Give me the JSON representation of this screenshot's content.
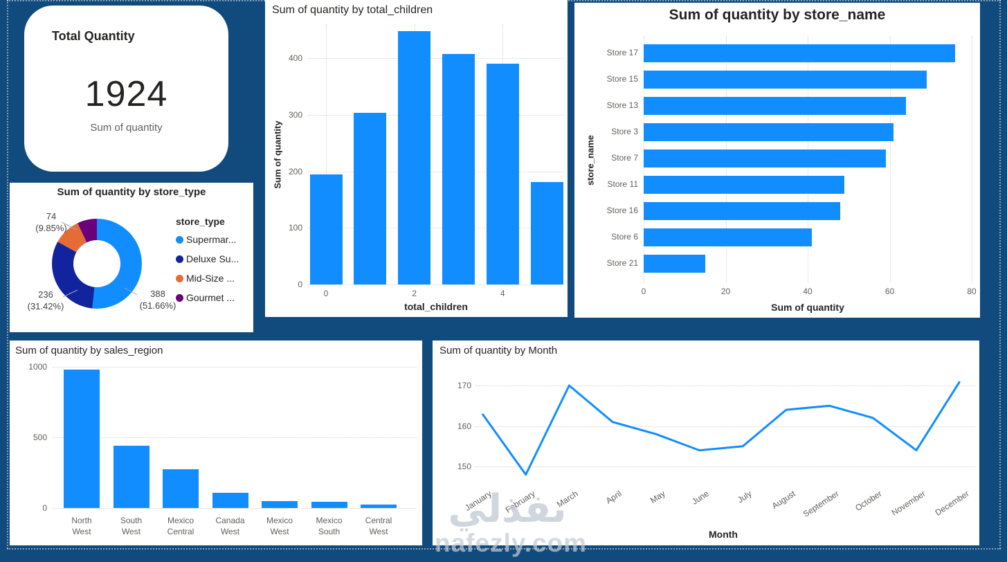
{
  "canvas": {
    "background": "#114A7C"
  },
  "card": {
    "title": "Total Quantity",
    "value": "1924",
    "label": "Sum of quantity"
  },
  "colors": {
    "bar_blue": "#118DFF",
    "navy": "#12239E",
    "orange": "#E66C37",
    "purple": "#6B007B",
    "title_text": "#252423",
    "axis_text": "#605E5C"
  },
  "watermark": {
    "arabic": "نفذلي",
    "site": "nafezly.com"
  },
  "chart_data": [
    {
      "id": "store_type_donut",
      "type": "pie",
      "title": "Sum of quantity by store_type",
      "legend_title": "store_type",
      "legend_position": "right",
      "slices": [
        {
          "label": "Supermar...",
          "value": 388,
          "percent": "51.66%",
          "color": "#118DFF"
        },
        {
          "label": "Deluxe Su...",
          "value": 236,
          "percent": "31.42%",
          "color": "#12239E"
        },
        {
          "label": "Mid-Size ...",
          "value": 74,
          "percent": "9.85%",
          "color": "#E66C37"
        },
        {
          "label": "Gourmet ...",
          "value": 53,
          "percent": "7.07%",
          "color": "#6B007B",
          "label_hidden": true
        }
      ],
      "callouts": [
        {
          "value": "74",
          "percent": "(9.85%)"
        },
        {
          "value": "236",
          "percent": "(31.42%)"
        },
        {
          "value": "388",
          "percent": "(51.66%)"
        }
      ]
    },
    {
      "id": "total_children",
      "type": "bar",
      "title": "Sum of quantity by total_children",
      "xlabel": "total_children",
      "ylabel": "Sum of quantity",
      "categories": [
        "0",
        "1",
        "2",
        "3",
        "4",
        "5"
      ],
      "values": [
        195,
        303,
        448,
        407,
        390,
        181
      ],
      "yticks": [
        0,
        100,
        200,
        300,
        400
      ],
      "ylim": [
        0,
        460
      ],
      "xtick_labels": [
        {
          "index": 0,
          "text": "0"
        },
        {
          "index": 2,
          "text": "2"
        },
        {
          "index": 4,
          "text": "4"
        }
      ],
      "color": "#118DFF",
      "grid": "dotted"
    },
    {
      "id": "store_name",
      "type": "bar",
      "orientation": "horizontal",
      "title": "Sum of quantity by store_name",
      "xlabel": "Sum of quantity",
      "ylabel": "store_name",
      "categories": [
        "Store 17",
        "Store 15",
        "Store 13",
        "Store 3",
        "Store 7",
        "Store 11",
        "Store 16",
        "Store 6",
        "Store 21"
      ],
      "values": [
        76,
        69,
        64,
        61,
        59,
        49,
        48,
        41,
        15
      ],
      "xticks": [
        0,
        20,
        40,
        60,
        80
      ],
      "xlim": [
        0,
        80
      ],
      "color": "#118DFF",
      "grid": "dotted"
    },
    {
      "id": "sales_region",
      "type": "bar",
      "title": "Sum of quantity by sales_region",
      "categories": [
        "North West",
        "South West",
        "Mexico Central",
        "Canada West",
        "Mexico West",
        "Mexico South",
        "Central West"
      ],
      "values": [
        980,
        440,
        275,
        110,
        50,
        44,
        25
      ],
      "yticks": [
        0,
        500,
        1000
      ],
      "ylim": [
        0,
        1040
      ],
      "color": "#118DFF",
      "grid": "dotted"
    },
    {
      "id": "month",
      "type": "line",
      "title": "Sum of quantity by Month",
      "xlabel": "Month",
      "categories": [
        "January",
        "February",
        "March",
        "April",
        "May",
        "June",
        "July",
        "August",
        "September",
        "October",
        "November",
        "December"
      ],
      "values": [
        163,
        148,
        170,
        161,
        158,
        154,
        155,
        164,
        165,
        162,
        154,
        171
      ],
      "yticks": [
        150,
        160,
        170
      ],
      "ylim": [
        145,
        175
      ],
      "line_color": "#118DFF",
      "grid": "dotted"
    }
  ]
}
